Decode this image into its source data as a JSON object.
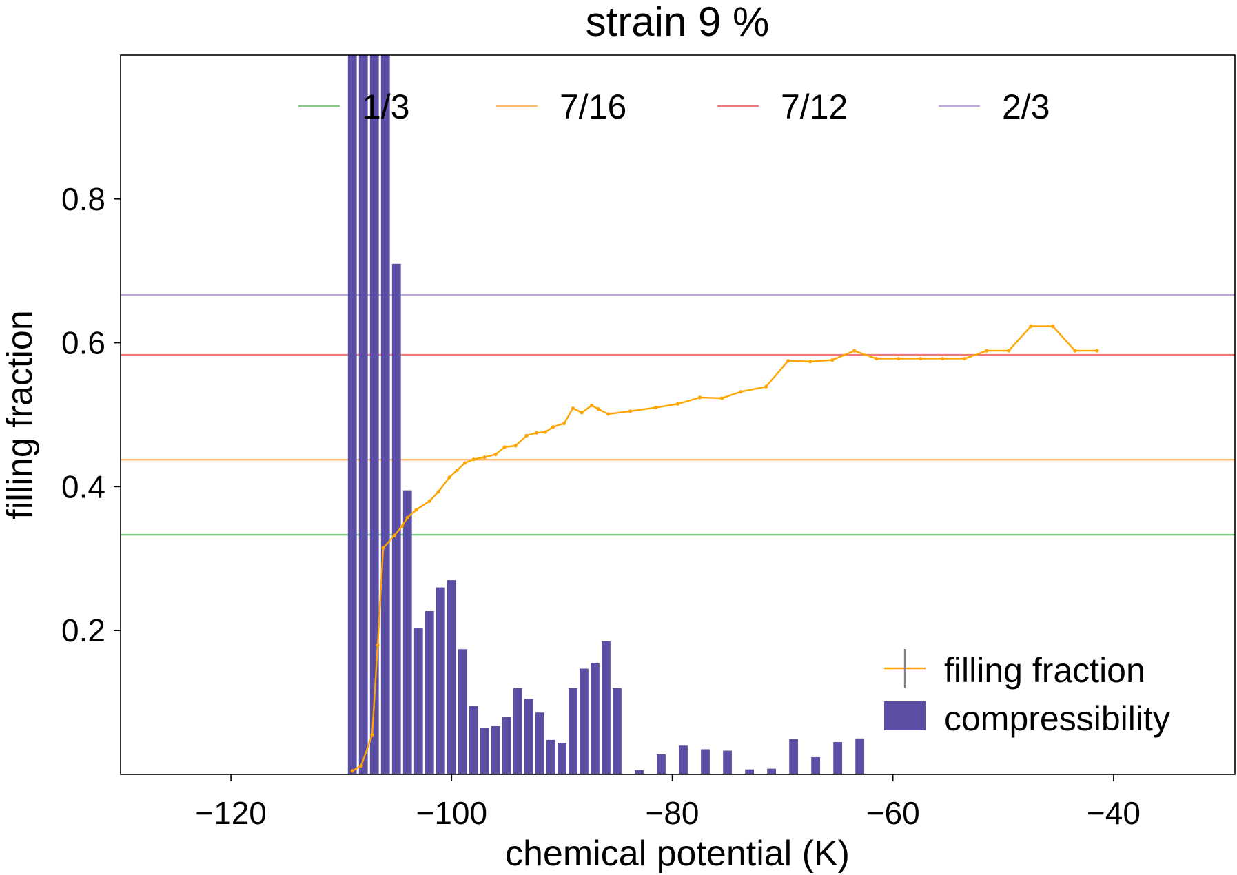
{
  "chart_data": {
    "type": "bar+line",
    "title": "strain 9 %",
    "xlabel": "chemical potential (K)",
    "ylabel": "filling fraction",
    "xlim": [
      -130,
      -29
    ],
    "ylim": [
      0,
      1
    ],
    "xticks": [
      -120,
      -100,
      -80,
      -60,
      -40
    ],
    "yticks": [
      0.2,
      0.4,
      0.6,
      0.8
    ],
    "xtick_labels": [
      "−120",
      "−100",
      "−80",
      "−60",
      "−40"
    ],
    "ytick_labels": [
      "0.2",
      "0.4",
      "0.6",
      "0.8"
    ],
    "grid": false,
    "reference_lines": [
      {
        "label": "1/3",
        "value": 0.3333,
        "color": "#80cc80"
      },
      {
        "label": "7/16",
        "value": 0.4375,
        "color": "#ffb870"
      },
      {
        "label": "7/12",
        "value": 0.5833,
        "color": "#ee7777"
      },
      {
        "label": "2/3",
        "value": 0.6667,
        "color": "#bba6dd"
      }
    ],
    "reference_legend_position": "top-center",
    "series_legend_position": "lower-right",
    "bars": {
      "name": "compressibility",
      "color": "#5a4fa4",
      "x": [
        -109,
        -108,
        -107,
        -106,
        -105,
        -104,
        -103,
        -102,
        -101,
        -100,
        -99,
        -98,
        -97,
        -96,
        -95,
        -94,
        -93,
        -92,
        -91,
        -90,
        -89,
        -88,
        -87,
        -86,
        -85,
        -83,
        -81,
        -79,
        -77,
        -75,
        -73,
        -71,
        -69,
        -67,
        -65,
        -63
      ],
      "values": [
        1.0,
        1.0,
        1.0,
        1.0,
        0.71,
        0.395,
        0.203,
        0.227,
        0.26,
        0.27,
        0.174,
        0.095,
        0.065,
        0.067,
        0.08,
        0.12,
        0.105,
        0.086,
        0.048,
        0.044,
        0.12,
        0.147,
        0.155,
        0.185,
        0.12,
        0.006,
        0.028,
        0.04,
        0.035,
        0.033,
        0.007,
        0.008,
        0.049,
        0.024,
        0.045,
        0.05
      ]
    },
    "series": [
      {
        "name": "filling fraction",
        "color": "#ffa500",
        "x": [
          -109,
          -108.2,
          -107.2,
          -106.7,
          -106.2,
          -105.2,
          -104.5,
          -104,
          -103.2,
          -102,
          -101.2,
          -100.2,
          -99.5,
          -98.8,
          -98,
          -97,
          -96,
          -95.2,
          -94.2,
          -93.2,
          -92.3,
          -91.5,
          -90.8,
          -89.8,
          -89,
          -88.2,
          -87.3,
          -86.7,
          -85.8,
          -83.8,
          -81.5,
          -79.5,
          -77.5,
          -75.5,
          -73.8,
          -71.5,
          -69.5,
          -67.5,
          -65.5,
          -63.5,
          -61.5,
          -59.5,
          -57.5,
          -55.5,
          -53.5,
          -51.5,
          -49.5,
          -47.5,
          -45.5,
          -43.5,
          -41.5
        ],
        "values": [
          0.005,
          0.012,
          0.055,
          0.18,
          0.315,
          0.332,
          0.345,
          0.357,
          0.368,
          0.38,
          0.393,
          0.413,
          0.423,
          0.433,
          0.438,
          0.441,
          0.445,
          0.455,
          0.457,
          0.471,
          0.475,
          0.476,
          0.483,
          0.488,
          0.509,
          0.503,
          0.513,
          0.508,
          0.501,
          0.505,
          0.51,
          0.515,
          0.524,
          0.523,
          0.532,
          0.539,
          0.575,
          0.574,
          0.576,
          0.589,
          0.578,
          0.578,
          0.578,
          0.578,
          0.578,
          0.589,
          0.589,
          0.623,
          0.623,
          0.589,
          0.589
        ]
      }
    ]
  }
}
